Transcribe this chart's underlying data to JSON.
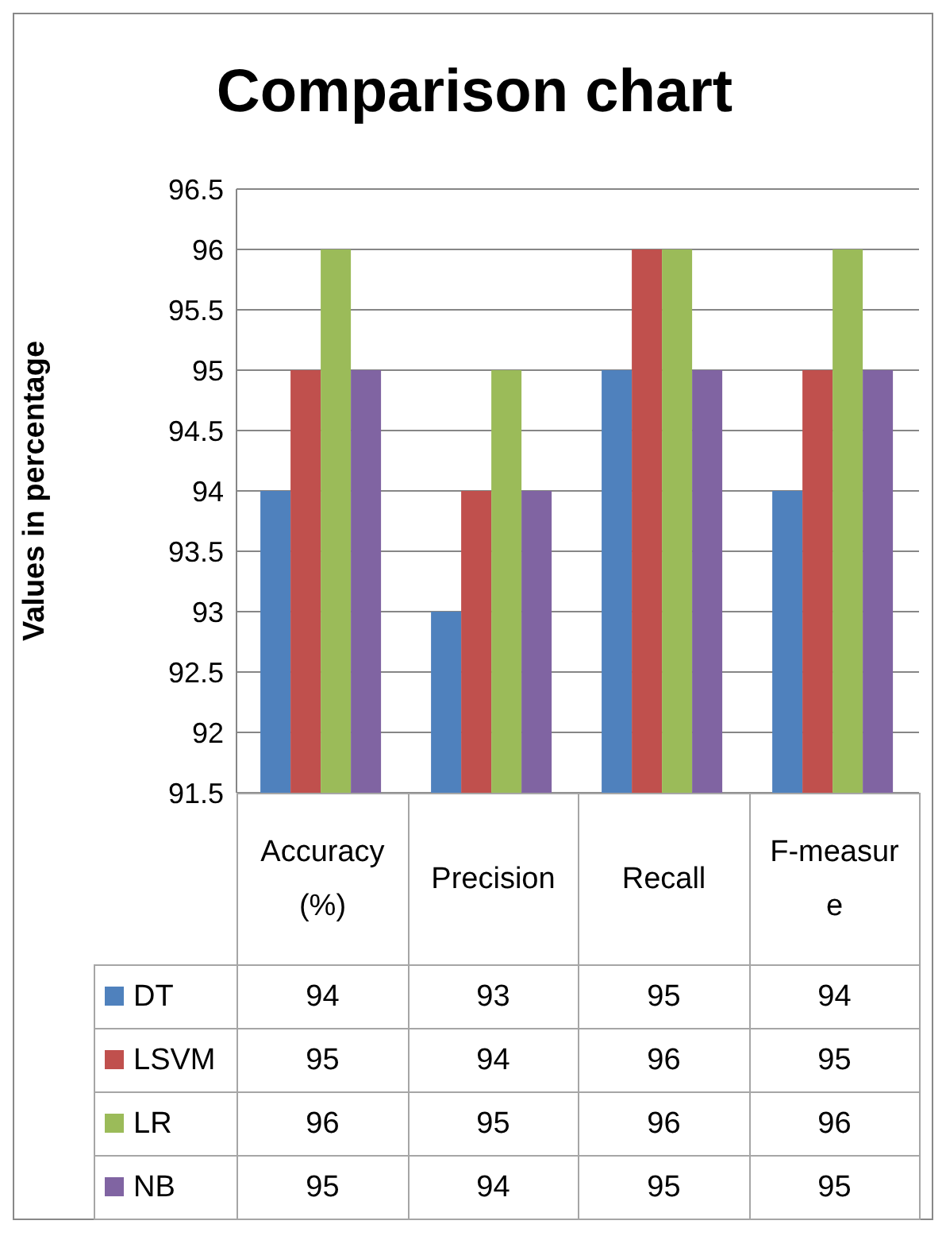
{
  "chart_data": {
    "type": "bar",
    "title": "Comparison chart",
    "ylabel": "Values in percentage",
    "categories": [
      "Accuracy (%)",
      "Precision",
      "Recall",
      "F-measure"
    ],
    "series": [
      {
        "name": "DT",
        "color": "#4f81bd",
        "values": [
          94,
          93,
          95,
          94
        ]
      },
      {
        "name": "LSVM",
        "color": "#c0504d",
        "values": [
          95,
          94,
          96,
          95
        ]
      },
      {
        "name": "LR",
        "color": "#9bbb59",
        "values": [
          96,
          95,
          96,
          96
        ]
      },
      {
        "name": "NB",
        "color": "#8064a2",
        "values": [
          95,
          94,
          95,
          95
        ]
      }
    ],
    "ylim": [
      91.5,
      96.5
    ],
    "yticks": [
      91.5,
      92,
      92.5,
      93,
      93.5,
      94,
      94.5,
      95,
      95.5,
      96,
      96.5
    ],
    "grid": "y",
    "legend": "bottom",
    "data_labels": true
  }
}
